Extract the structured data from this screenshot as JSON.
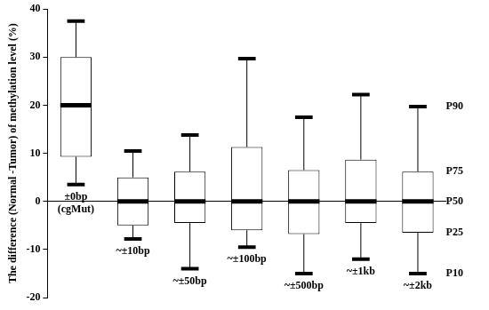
{
  "chart_data": {
    "type": "box",
    "y_label": "The difference (Normal -Tumor) of methylation level (%)",
    "categories": [
      "±0bp (cgMut)",
      "~±10bp",
      "~±50bp",
      "~±100bp",
      "~±500bp",
      "~±1kb",
      "~±2kb"
    ],
    "percentiles": [
      {
        "label": "P10",
        "values": [
          3.5,
          -7.8,
          -14,
          -9.5,
          -15,
          -12,
          -15
        ]
      },
      {
        "label": "P25",
        "values": [
          9.3,
          -5,
          -4.5,
          -6,
          -6.8,
          -4.5,
          -6.5
        ]
      },
      {
        "label": "P50",
        "values": [
          20,
          0,
          0,
          0,
          0,
          0,
          0
        ]
      },
      {
        "label": "P75",
        "values": [
          30,
          5,
          6.2,
          11.3,
          6.5,
          8.7,
          6.2
        ]
      },
      {
        "label": "P90",
        "values": [
          37.5,
          10.5,
          13.8,
          29.7,
          17.5,
          22.2,
          19.7
        ]
      }
    ],
    "color": "#000000",
    "ylim": [
      -20,
      40
    ],
    "yticks": [
      -20,
      -10,
      0,
      10,
      20,
      30,
      40
    ],
    "grid": false
  }
}
